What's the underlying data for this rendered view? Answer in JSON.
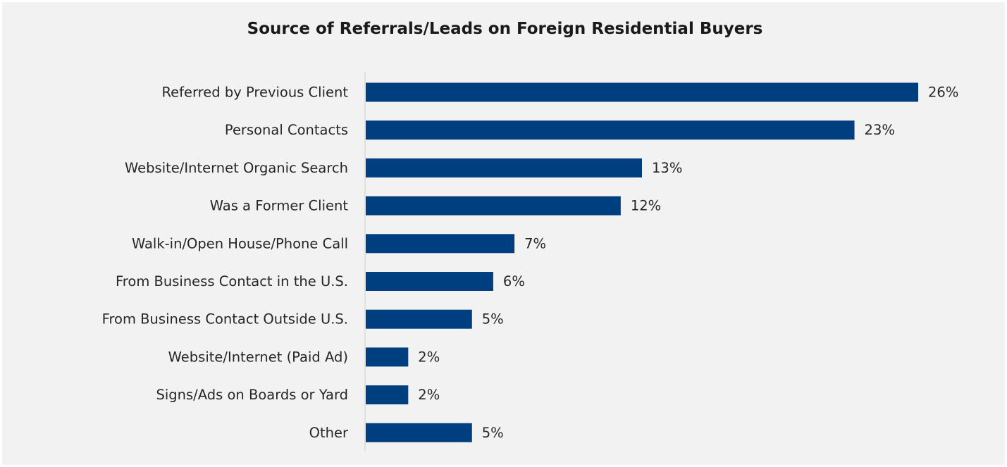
{
  "chart_data": {
    "type": "bar",
    "orientation": "horizontal",
    "title": "Source of Referrals/Leads on Foreign Residential Buyers",
    "categories": [
      "Referred by Previous Client",
      "Personal Contacts",
      "Website/Internet Organic Search",
      "Was a Former Client",
      "Walk-in/Open House/Phone Call",
      "From Business Contact in the U.S.",
      "From Business Contact Outside U.S.",
      "Website/Internet (Paid Ad)",
      "Signs/Ads on Boards or Yard",
      "Other"
    ],
    "values": [
      26,
      23,
      13,
      12,
      7,
      6,
      5,
      2,
      2,
      5
    ],
    "value_labels": [
      "26%",
      "23%",
      "13%",
      "12%",
      "7%",
      "6%",
      "5%",
      "2%",
      "2%",
      "5%"
    ],
    "unit": "%",
    "xlabel": "",
    "ylabel": "",
    "xlim": [
      0,
      26
    ],
    "grid": false,
    "legend": "none",
    "bar_color": "#003f7f",
    "background_color": "#f2f2f2"
  }
}
